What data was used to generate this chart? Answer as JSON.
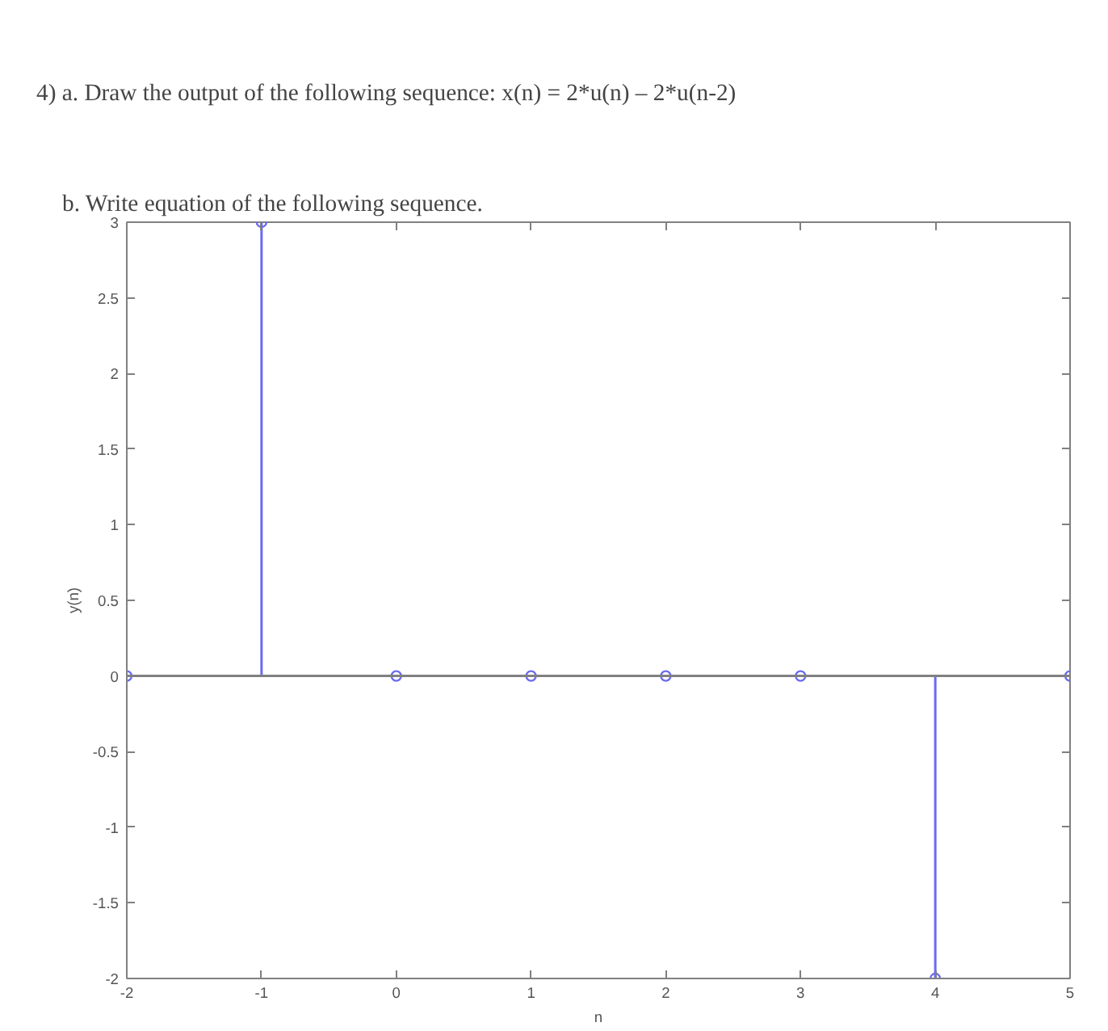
{
  "chart_data": {
    "type": "lollipop",
    "title": "4)  a. Draw the output of the following sequence: x(n) = 2*u(n) – 2*u(n-2)",
    "subtitle": "b. Write equation of the following sequence.",
    "xlabel": "n",
    "ylabel": "y(n)",
    "x": [
      -2,
      -1,
      0,
      1,
      2,
      3,
      4,
      5
    ],
    "series": [
      {
        "color": "#6b6bef",
        "values": [
          0,
          3,
          0,
          0,
          0,
          0,
          -2,
          0
        ]
      }
    ],
    "xlim": [
      -2,
      5
    ],
    "ylim": [
      -2,
      3
    ],
    "xticks": [
      -2,
      -1,
      0,
      1,
      2,
      3,
      4,
      5
    ],
    "yticks": [
      -2,
      -1.5,
      -1,
      -0.5,
      0,
      0.5,
      1,
      1.5,
      2,
      2.5,
      3
    ],
    "ref_lines": [
      {
        "axis": "y",
        "value": 0
      }
    ],
    "marker": "circle",
    "grid": false
  }
}
